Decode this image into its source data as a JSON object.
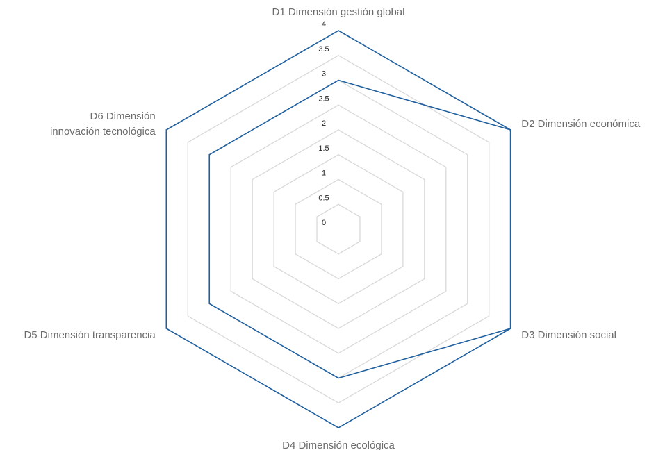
{
  "chart_data": {
    "type": "radar",
    "axes": [
      [
        "D1 Dimensión gestión global"
      ],
      [
        "D2 Dimensión económica"
      ],
      [
        "D3 Dimensión social"
      ],
      [
        "D4 Dimensión ecológica"
      ],
      [
        "D5 Dimensión transparencia"
      ],
      [
        "D6 Dimensión",
        "innovación tecnológica"
      ]
    ],
    "r_range": [
      0,
      4
    ],
    "ticks": [
      "0",
      "0.5",
      "1",
      "1.5",
      "2",
      "2.5",
      "3",
      "3.5",
      "4"
    ],
    "tick_values": [
      0,
      0.5,
      1,
      1.5,
      2,
      2.5,
      3,
      3.5,
      4
    ],
    "grid": true,
    "legend": "none",
    "series": [
      {
        "name": "",
        "color": "#1f5f9e",
        "values": [
          3,
          4,
          4,
          3,
          3,
          3
        ]
      },
      {
        "name": "",
        "color": "#1f5f9e",
        "values": [
          4,
          4,
          4,
          4,
          4,
          4
        ]
      }
    ]
  }
}
